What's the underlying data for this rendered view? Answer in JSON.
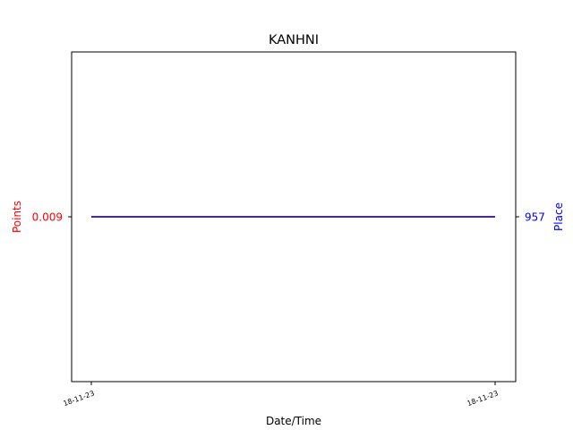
{
  "chart_data": {
    "type": "line",
    "title": "KANHNI",
    "xlabel": "Date/Time",
    "ylabel_left": "Points",
    "ylabel_right": "Place",
    "left_color": "#ff0000",
    "right_color": "#0000ff",
    "categories": [
      "18-11-23",
      "18-11-23"
    ],
    "left_ticks": [
      "0.009"
    ],
    "right_ticks": [
      "957"
    ],
    "series": [
      {
        "axis": "left",
        "color": "#ff0000",
        "values": [
          0.009,
          0.009
        ]
      },
      {
        "axis": "right",
        "color": "#0000ff",
        "values": [
          957,
          957
        ]
      }
    ],
    "grid": false
  }
}
